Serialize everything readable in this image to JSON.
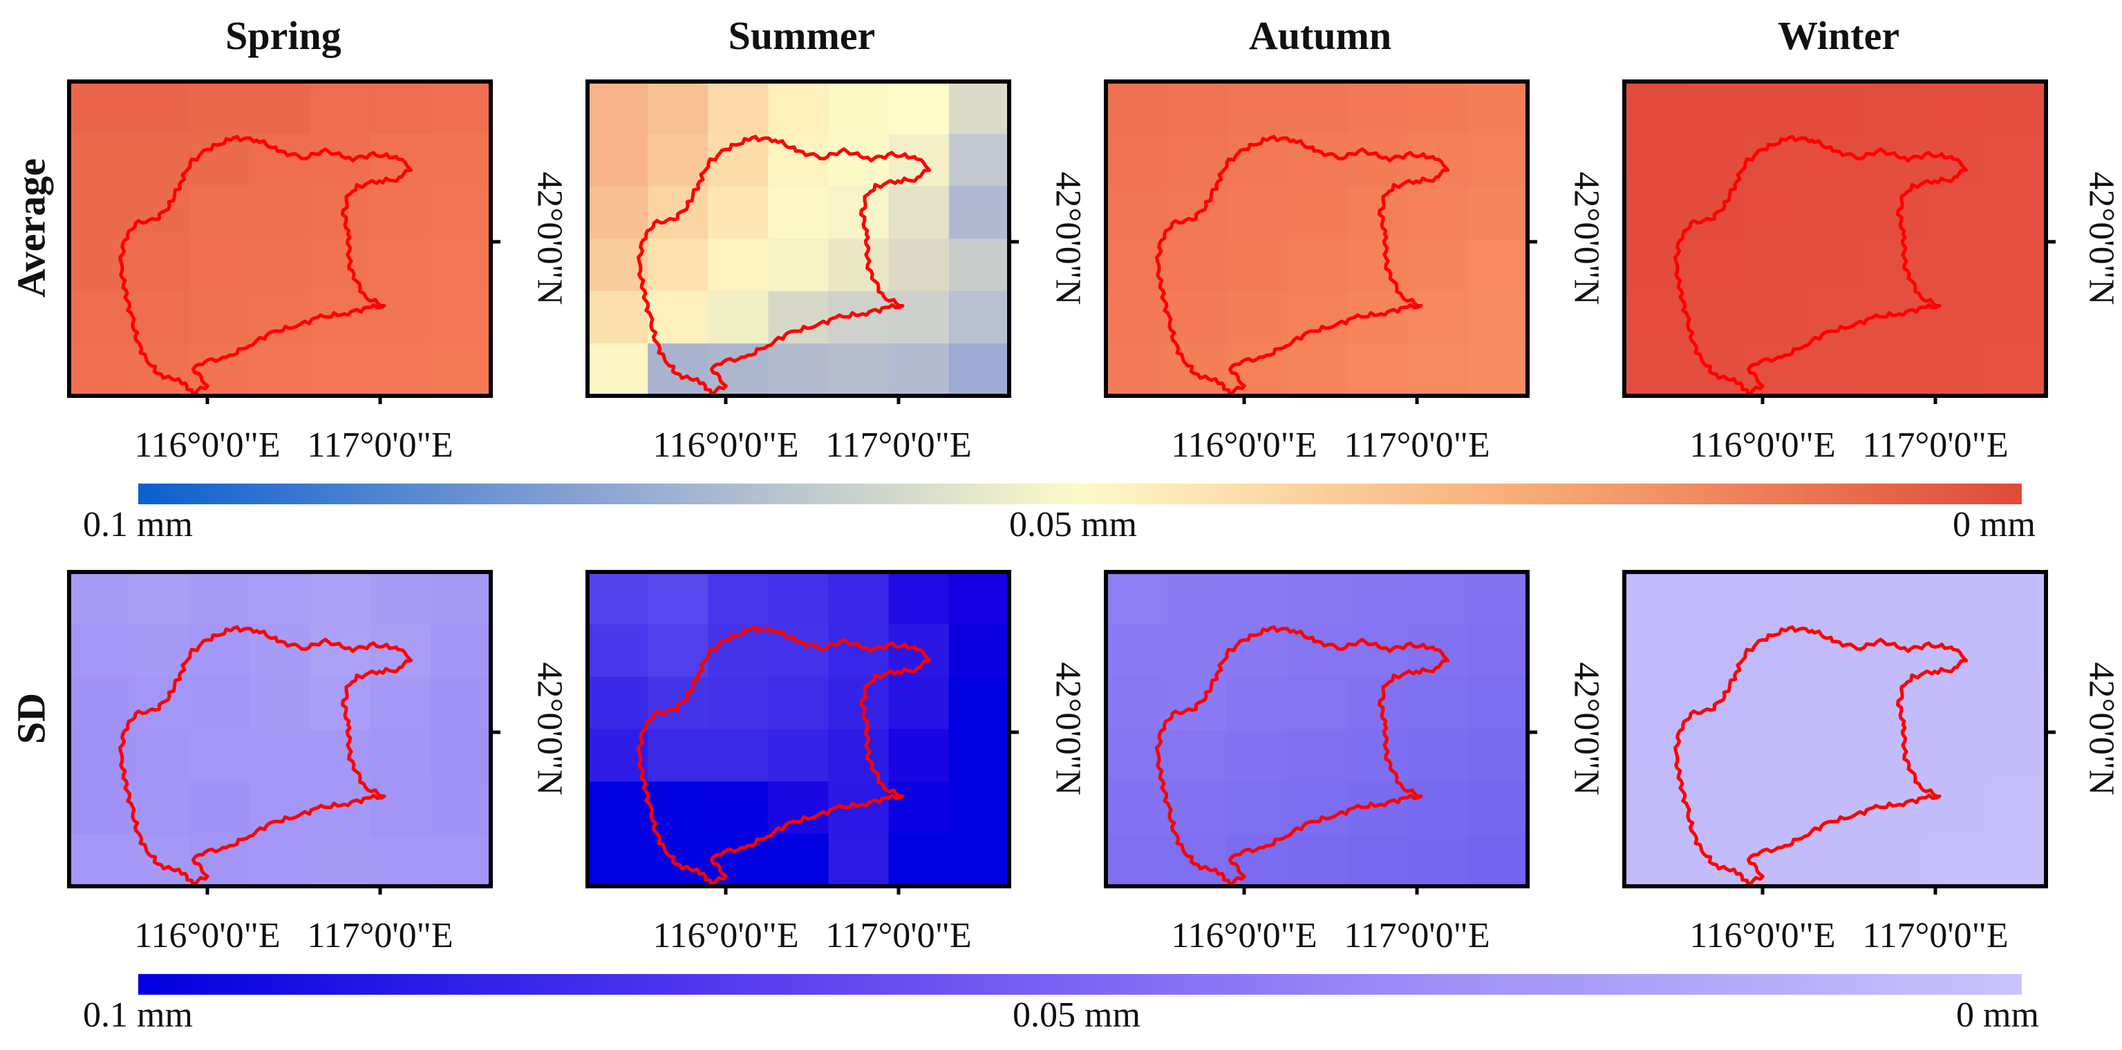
{
  "seasons": [
    "Spring",
    "Summer",
    "Autumn",
    "Winter"
  ],
  "rows": [
    "Average",
    "SD"
  ],
  "axes": {
    "lat_label": "42°0'0\"N",
    "lon_labels": [
      "116°0'0\"E",
      "117°0'0\"E"
    ]
  },
  "colorbars": {
    "average": {
      "left_label": "0.1 mm",
      "mid_label": "0.05 mm",
      "right_label": "0 mm",
      "stops": [
        "#0a5fd0",
        "#8fa6d2",
        "#fdfac8",
        "#f7a772",
        "#e04a38"
      ]
    },
    "sd": {
      "left_label": "0.1 mm",
      "mid_label": "0.05 mm",
      "right_label": "0 mm",
      "stops": [
        "#0000e0",
        "#5a3ef0",
        "#9c8bf7",
        "#c8c4fb"
      ]
    }
  },
  "map_data": {
    "boundary_color": "#ff0000",
    "grids": {
      "average": {
        "Spring": [
          [
            "#ea6549",
            "#ea6549",
            "#ec684b",
            "#ec684b",
            "#ee6d4f",
            "#ee6d4f",
            "#ef6f50"
          ],
          [
            "#eb6a4c",
            "#ec6a4c",
            "#ed6b4d",
            "#ed6d4e",
            "#ef6e50",
            "#f07251",
            "#f17452"
          ],
          [
            "#ec6a4c",
            "#ec6b4d",
            "#ee6e50",
            "#ee6e50",
            "#f07150",
            "#f17452",
            "#f27653"
          ],
          [
            "#ed6b4d",
            "#ed6c4e",
            "#ef6f50",
            "#f07150",
            "#f17452",
            "#f27553",
            "#f37754"
          ],
          [
            "#ee6d4f",
            "#ee6e4f",
            "#f07150",
            "#f17251",
            "#f27553",
            "#f37654",
            "#f47855"
          ],
          [
            "#ef6f50",
            "#f07150",
            "#f17452",
            "#f27653",
            "#f37754",
            "#f47855",
            "#f47a56"
          ]
        ],
        "Summer": [
          [
            "#f7b48a",
            "#f8c194",
            "#fbd9a8",
            "#fdf0bb",
            "#fdfac6",
            "#fefcc8",
            "#dcdbc9"
          ],
          [
            "#f7b48a",
            "#f9c799",
            "#fbdca9",
            "#fdf3c0",
            "#fefac7",
            "#f3f0c8",
            "#c3c8d0"
          ],
          [
            "#f8bf93",
            "#fad4a3",
            "#fde8b5",
            "#fdf8c6",
            "#f6f4c8",
            "#e3e1c7",
            "#b0b8d2"
          ],
          [
            "#f9cc9c",
            "#fde2b0",
            "#fdf2c0",
            "#f6f2c5",
            "#e9e6c6",
            "#dcdac6",
            "#c8ccca"
          ],
          [
            "#fbe0ad",
            "#fdf0bf",
            "#f1efc5",
            "#d8d8c9",
            "#cfd1cc",
            "#cdd0cd",
            "#b8bfd0"
          ],
          [
            "#fdf7c6",
            "#a9b3cf",
            "#adb6cf",
            "#b4bbcf",
            "#b7bece",
            "#b3bbd0",
            "#9eabd4"
          ]
        ],
        "Autumn": [
          [
            "#ee7150",
            "#ef7251",
            "#f07553",
            "#f17754",
            "#f27955",
            "#f37b56",
            "#f47e58"
          ],
          [
            "#ef7352",
            "#f07553",
            "#f17855",
            "#f27a56",
            "#f37c57",
            "#f47f59",
            "#f5815b"
          ],
          [
            "#f07553",
            "#f17755",
            "#f27a56",
            "#f37c57",
            "#f47f59",
            "#f5825b",
            "#f6855d"
          ],
          [
            "#f17755",
            "#f27956",
            "#f37c57",
            "#f47f59",
            "#f5825b",
            "#f6855d",
            "#f7885f"
          ],
          [
            "#f27956",
            "#f37b57",
            "#f47e58",
            "#f5815a",
            "#f6845c",
            "#f7875e",
            "#f88a60"
          ],
          [
            "#f37b57",
            "#f47e58",
            "#f5815a",
            "#f6845c",
            "#f7875e",
            "#f88a60",
            "#f98d62"
          ]
        ],
        "Winter": [
          [
            "#e24a3c",
            "#e24b3c",
            "#e34c3d",
            "#e34c3d",
            "#e34d3d",
            "#e44d3e",
            "#e44e3e"
          ],
          [
            "#e34b3c",
            "#e34c3d",
            "#e34d3d",
            "#e44d3e",
            "#e44e3e",
            "#e44e3e",
            "#e54f3f"
          ],
          [
            "#e34c3d",
            "#e34c3d",
            "#e44d3e",
            "#e44e3e",
            "#e44e3e",
            "#e54f3f",
            "#e54f3f"
          ],
          [
            "#e34c3d",
            "#e44d3e",
            "#e44e3e",
            "#e44e3e",
            "#e54f3f",
            "#e54f3f",
            "#e5503f"
          ],
          [
            "#e44d3e",
            "#e44e3e",
            "#e44e3e",
            "#e54f3f",
            "#e54f3f",
            "#e5503f",
            "#e6503f"
          ],
          [
            "#e44e3e",
            "#e44e3e",
            "#e54f3f",
            "#e54f3f",
            "#e5503f",
            "#e6503f",
            "#e65140"
          ]
        ]
      },
      "sd": {
        "Spring": [
          [
            "#a79bf6",
            "#aa9ff7",
            "#a79cf7",
            "#a99ef7",
            "#ab9ff7",
            "#a89cf7",
            "#a599f6"
          ],
          [
            "#a496f6",
            "#a79af7",
            "#a597f6",
            "#a89bf7",
            "#aca0f7",
            "#a99df7",
            "#a395f6"
          ],
          [
            "#a193f5",
            "#a496f6",
            "#a395f6",
            "#a799f6",
            "#aa9df7",
            "#a497f6",
            "#a193f5"
          ],
          [
            "#9f91f5",
            "#a294f5",
            "#a496f6",
            "#a597f6",
            "#a597f6",
            "#a395f6",
            "#a092f5"
          ],
          [
            "#a092f5",
            "#a395f6",
            "#a193f5",
            "#a496f6",
            "#a597f6",
            "#a294f5",
            "#a193f5"
          ],
          [
            "#a597f6",
            "#a698f6",
            "#a395f6",
            "#a597f6",
            "#a799f6",
            "#a597f6",
            "#a496f6"
          ]
        ],
        "Summer": [
          [
            "#5544ee",
            "#5848ef",
            "#4a36ec",
            "#4230ea",
            "#3a26e8",
            "#1e0ae3",
            "#1400e2"
          ],
          [
            "#4a38ec",
            "#5040ed",
            "#4634eb",
            "#4533eb",
            "#3827e8",
            "#2a17e6",
            "#0a00e0"
          ],
          [
            "#3a28e8",
            "#4634eb",
            "#4331ea",
            "#3e2ce9",
            "#3423e7",
            "#2512e5",
            "#0000e0"
          ],
          [
            "#2f1de7",
            "#3b29e8",
            "#3b29e8",
            "#3523e7",
            "#2c1ae6",
            "#1806e3",
            "#0000e0"
          ],
          [
            "#0000e0",
            "#0000e0",
            "#0500e1",
            "#1a08e3",
            "#2a18e6",
            "#0a00e1",
            "#0000e0"
          ],
          [
            "#0000e0",
            "#0000e0",
            "#0000e0",
            "#0000e0",
            "#2b19e6",
            "#0000e0",
            "#0000e0"
          ]
        ],
        "Autumn": [
          [
            "#8e7ef3",
            "#8c7cf3",
            "#8a7af3",
            "#8878f2",
            "#8777f2",
            "#8474f2",
            "#8373f2"
          ],
          [
            "#8a7af3",
            "#8b7bf3",
            "#8979f2",
            "#8676f2",
            "#8575f2",
            "#8272f1",
            "#8070f1"
          ],
          [
            "#8878f2",
            "#8a7af3",
            "#8777f2",
            "#8474f2",
            "#8272f1",
            "#7f6ff1",
            "#7d6df1"
          ],
          [
            "#8676f2",
            "#8575f2",
            "#8373f2",
            "#8070f1",
            "#7e6ef1",
            "#7c6cf1",
            "#7a6af0"
          ],
          [
            "#8373f2",
            "#8272f1",
            "#7f6ff1",
            "#7d6df1",
            "#7b6bf0",
            "#7969f0",
            "#7767f0"
          ],
          [
            "#8070f1",
            "#7f6ff1",
            "#7c6cf1",
            "#7a6af0",
            "#7868f0",
            "#7666f0",
            "#7363ef"
          ]
        ],
        "Winter": [
          [
            "#c0b9fa",
            "#c1bafa",
            "#c1bafa",
            "#c2bbfa",
            "#c2bbfa",
            "#c3bcfa",
            "#c3bcfa"
          ],
          [
            "#c0b9fa",
            "#c1bafa",
            "#c1bafa",
            "#c2bbfa",
            "#c2bbfa",
            "#c3bcfa",
            "#c3bcfa"
          ],
          [
            "#c1bafa",
            "#c1bafa",
            "#c2bbfa",
            "#c2bbfa",
            "#c3bcfa",
            "#c3bcfa",
            "#c4bdfa"
          ],
          [
            "#c1bafa",
            "#c2bbfa",
            "#c2bbfa",
            "#c3bcfa",
            "#c3bcfa",
            "#c4bdfa",
            "#c4bdfa"
          ],
          [
            "#c2bbfa",
            "#c2bbfa",
            "#c3bcfa",
            "#c3bcfa",
            "#c4bdfa",
            "#c4bdfa",
            "#c5befa"
          ],
          [
            "#c2bbfa",
            "#c3bcfa",
            "#c3bcfa",
            "#c4bdfa",
            "#c4bdfa",
            "#c5befa",
            "#c5befa"
          ]
        ]
      }
    }
  }
}
